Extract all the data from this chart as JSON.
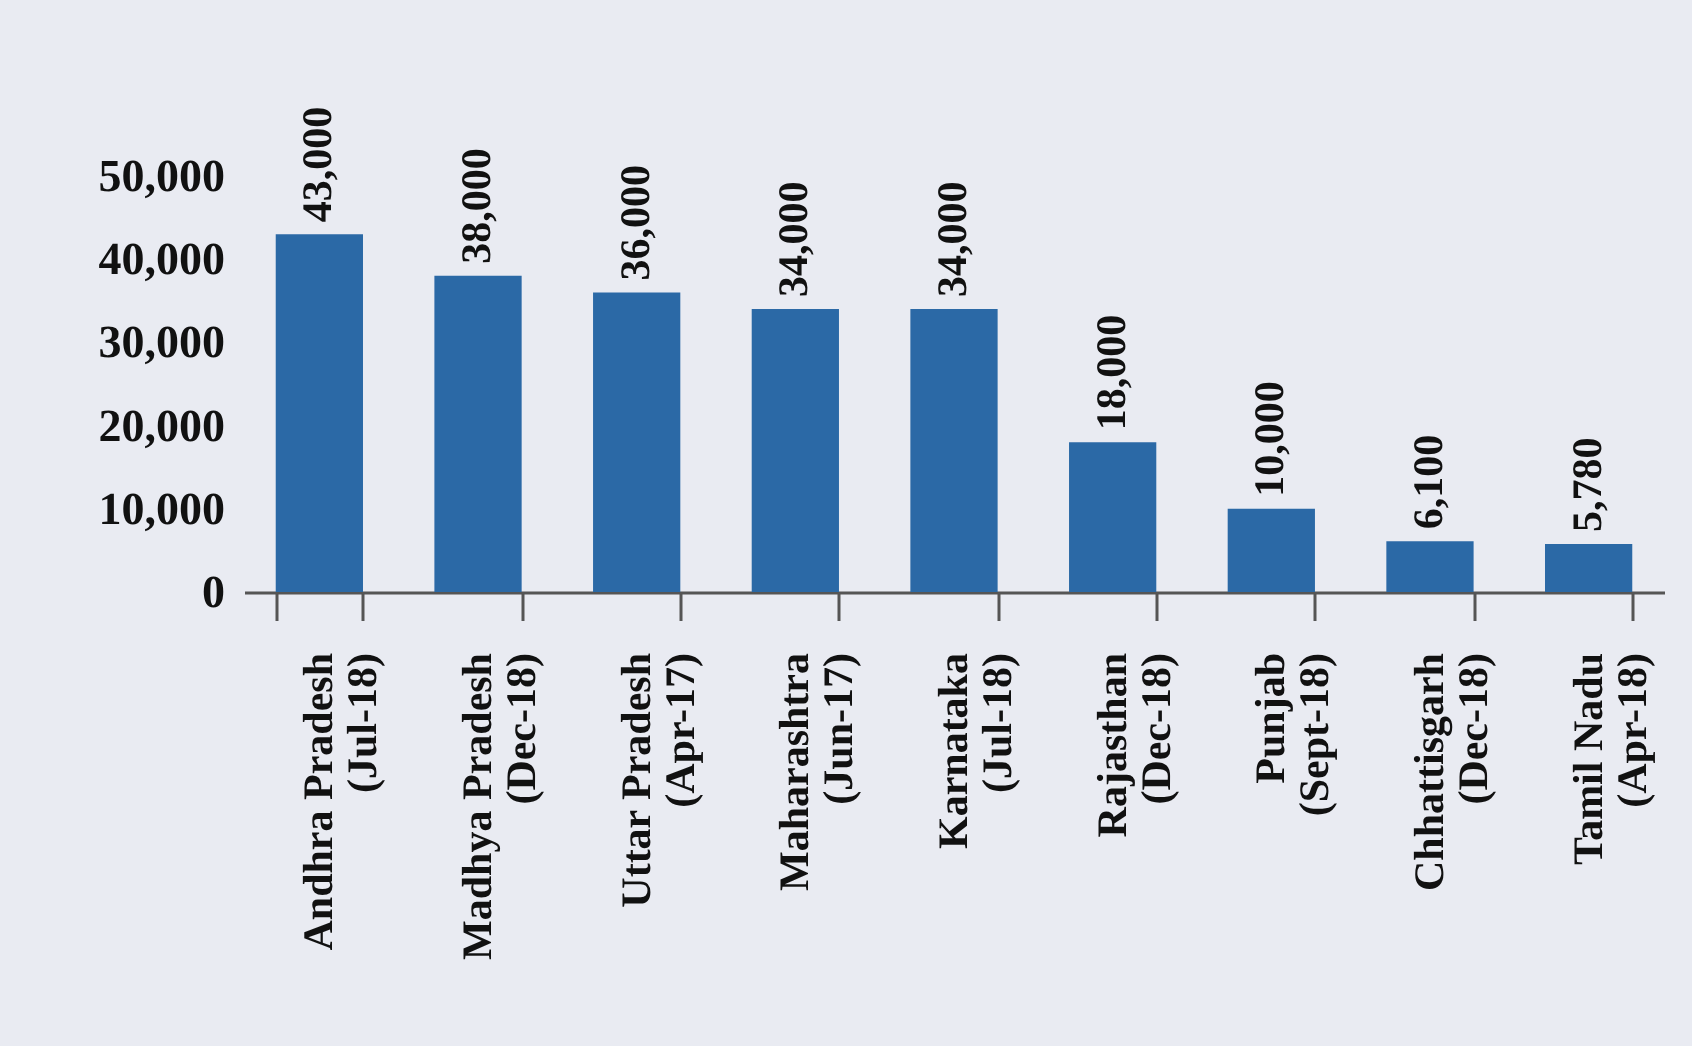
{
  "chart_data": {
    "type": "bar",
    "categories": [
      "Andhra Pradesh\n(Jul-18)",
      "Madhya Pradesh\n(Dec-18)",
      "Uttar Pradesh\n(Apr-17)",
      "Maharashtra\n(Jun-17)",
      "Karnataka\n(Jul-18)",
      "Rajasthan\n(Dec-18)",
      "Punjab\n(Sept-18)",
      "Chhattisgarh\n(Dec-18)",
      "Tamil Nadu\n(Apr-18)"
    ],
    "values": [
      43000,
      38000,
      36000,
      34000,
      34000,
      18000,
      10000,
      6100,
      5780
    ],
    "color": "#2b69a6",
    "value_labels": [
      "43,000",
      "38,000",
      "36,000",
      "34,000",
      "34,000",
      "18,000",
      "10,000",
      "6,100",
      "5,780"
    ],
    "ylim": [
      0,
      50000
    ],
    "yticks": [
      0,
      {
        "value": 10000,
        "label": "10,000"
      },
      {
        "value": 20000,
        "label": "20,000"
      },
      {
        "value": 30000,
        "label": "30,000"
      },
      {
        "value": 40000,
        "label": "40,000"
      },
      {
        "value": 50000,
        "label": "50,000"
      }
    ],
    "grid": false
  }
}
